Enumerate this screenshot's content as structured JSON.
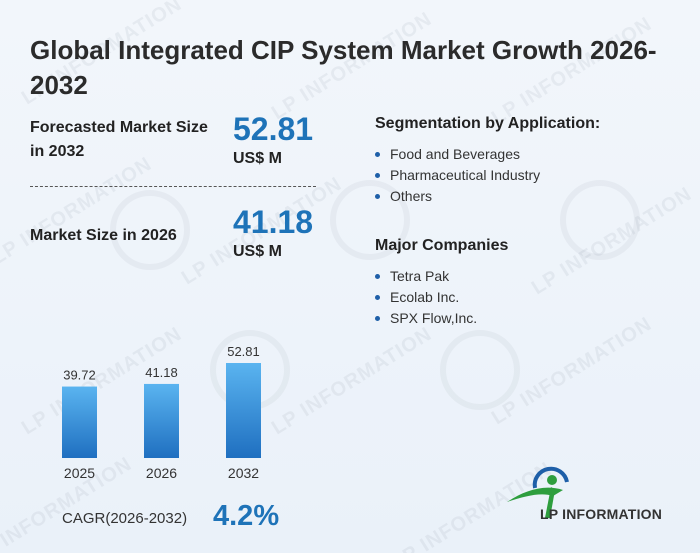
{
  "title": "Global Integrated CIP System Market Growth 2026-2032",
  "forecast": {
    "label": "Forecasted Market Size in 2032",
    "value": "52.81",
    "unit": "US$ M"
  },
  "current": {
    "label": "Market Size in 2026",
    "value": "41.18",
    "unit": "US$ M"
  },
  "segmentation": {
    "title": "Segmentation by Application:",
    "items": [
      "Food and Beverages",
      "Pharmaceutical Industry",
      "Others"
    ]
  },
  "companies": {
    "title": "Major Companies",
    "items": [
      "Tetra Pak",
      "Ecolab Inc.",
      "SPX Flow,Inc."
    ]
  },
  "cagr": {
    "label": "CAGR(2026-2032)",
    "value": "4.2%"
  },
  "brand": {
    "name": "LP INFORMATION",
    "watermark": "LP INFORMATION"
  },
  "colors": {
    "accent": "#1e73b8",
    "bar_top": "#5ab4f0",
    "bar_bottom": "#1f6fc0",
    "brand_green": "#2e9e3e",
    "brand_blue": "#1e5fa8"
  },
  "chart_data": {
    "type": "bar",
    "categories": [
      "2025",
      "2026",
      "2032"
    ],
    "values": [
      39.72,
      41.18,
      52.81
    ],
    "data_labels": [
      "39.72",
      "41.18",
      "52.81"
    ],
    "title": "",
    "xlabel": "",
    "ylabel": "",
    "grid": false
  }
}
